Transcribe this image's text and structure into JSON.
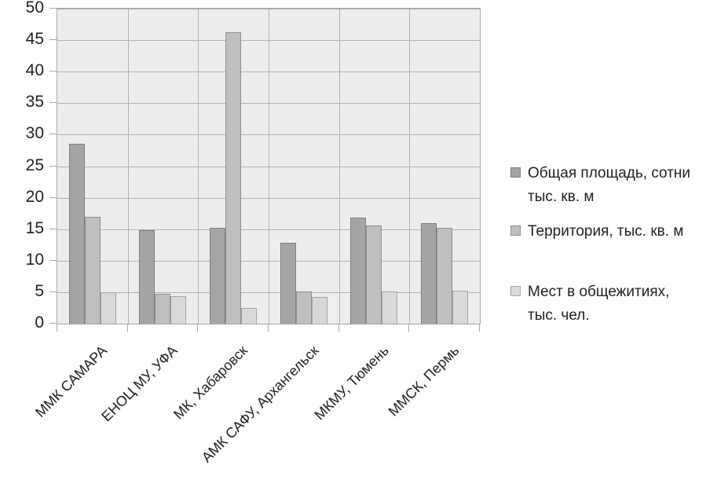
{
  "page": {
    "background_color": "#ffffff",
    "text_color": "#1f1f1f"
  },
  "chart_data": {
    "type": "bar",
    "title": "",
    "xlabel": "",
    "ylabel": "",
    "categories": [
      "ММК САМАРА",
      "ЕНОЦ МУ, УФА",
      "МК, Хабаровск",
      "АМК САФУ, Архангельск",
      "МКМУ, Тюмень",
      "ММСК, Пермь"
    ],
    "series": [
      {
        "name": "Общая площадь, сотни тыс. кв. м",
        "color": "#a5a5a5",
        "border_color": "#7f7f7f",
        "values": [
          28.5,
          14.8,
          15.2,
          12.8,
          16.8,
          16.0
        ]
      },
      {
        "name": "Территория, тыс. кв. м",
        "color": "#bfbfbf",
        "border_color": "#8f8f8f",
        "values": [
          17.0,
          4.8,
          46.2,
          5.1,
          15.6,
          15.2
        ]
      },
      {
        "name": "Мест в общежитиях, тыс. чел.",
        "color": "#d9d9d9",
        "border_color": "#a3a3a3",
        "values": [
          5.0,
          4.4,
          2.5,
          4.3,
          5.1,
          5.2
        ]
      }
    ],
    "ylim": [
      0,
      50
    ],
    "ytick_step": 5,
    "ytick_labels": [
      "0",
      "5",
      "10",
      "15",
      "20",
      "25",
      "30",
      "35",
      "40",
      "45",
      "50"
    ],
    "grid": true,
    "legend_position": "right",
    "plot_background": "#ededed",
    "gridline_color": "#b0b0b0",
    "axis_color": "#a6a6a6"
  }
}
